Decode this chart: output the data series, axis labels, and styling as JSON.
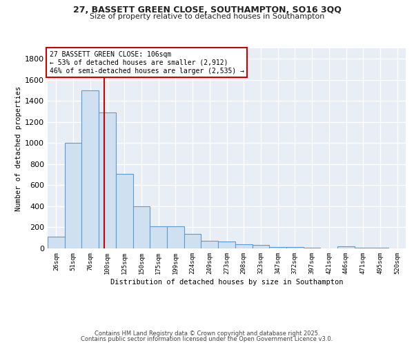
{
  "title_line1": "27, BASSETT GREEN CLOSE, SOUTHAMPTON, SO16 3QQ",
  "title_line2": "Size of property relative to detached houses in Southampton",
  "xlabel": "Distribution of detached houses by size in Southampton",
  "ylabel": "Number of detached properties",
  "categories": [
    "26sqm",
    "51sqm",
    "76sqm",
    "100sqm",
    "125sqm",
    "150sqm",
    "175sqm",
    "199sqm",
    "224sqm",
    "249sqm",
    "273sqm",
    "298sqm",
    "323sqm",
    "347sqm",
    "372sqm",
    "397sqm",
    "421sqm",
    "446sqm",
    "471sqm",
    "495sqm",
    "520sqm"
  ],
  "values": [
    110,
    1000,
    1500,
    1290,
    710,
    400,
    210,
    210,
    135,
    70,
    65,
    40,
    30,
    15,
    10,
    5,
    0,
    20,
    5,
    5,
    0
  ],
  "bar_color": "#cfe0f0",
  "bar_edge_color": "#5b9bd5",
  "red_line_x": 2.82,
  "red_line_label": "27 BASSETT GREEN CLOSE: 106sqm",
  "annotation_line2": "← 53% of detached houses are smaller (2,912)",
  "annotation_line3": "46% of semi-detached houses are larger (2,535) →",
  "annotation_box_color": "#ffffff",
  "annotation_box_edge": "#cc0000",
  "ylim": [
    0,
    1900
  ],
  "yticks": [
    0,
    200,
    400,
    600,
    800,
    1000,
    1200,
    1400,
    1600,
    1800
  ],
  "background_color": "#e8eef5",
  "grid_color": "#ffffff",
  "footer_line1": "Contains HM Land Registry data © Crown copyright and database right 2025.",
  "footer_line2": "Contains public sector information licensed under the Open Government Licence v3.0."
}
